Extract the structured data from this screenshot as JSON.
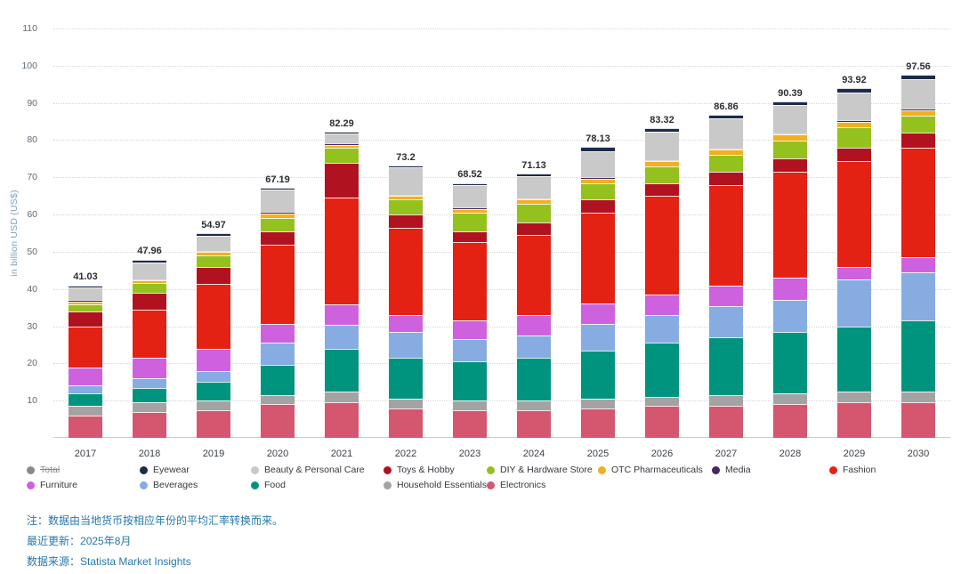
{
  "chart_data": {
    "type": "bar",
    "stacked": true,
    "title": "",
    "xlabel": "",
    "ylabel": "in billion USD (US$)",
    "ylim": [
      0,
      110
    ],
    "ytick_step": 10,
    "grid": true,
    "legend_position": "bottom",
    "categories": [
      "2017",
      "2018",
      "2019",
      "2020",
      "2021",
      "2022",
      "2023",
      "2024",
      "2025",
      "2026",
      "2027",
      "2028",
      "2029",
      "2030"
    ],
    "totals": [
      41.03,
      47.96,
      54.97,
      67.19,
      82.29,
      73.2,
      68.52,
      71.13,
      78.13,
      83.32,
      86.86,
      90.39,
      93.92,
      97.56
    ],
    "total_labels": [
      "41.03",
      "47.96",
      "54.97",
      "67.19",
      "82.29",
      "73.2",
      "68.52",
      "71.13",
      "78.13",
      "83.32",
      "86.86",
      "90.39",
      "93.92",
      "97.56"
    ],
    "series": [
      {
        "name": "Electronics",
        "color": "#d4566f",
        "values": [
          6.0,
          7.0,
          7.5,
          9.0,
          9.5,
          8.0,
          7.5,
          7.5,
          8.0,
          8.5,
          8.5,
          9.0,
          9.5,
          9.5
        ]
      },
      {
        "name": "Household Essentials",
        "color": "#a3a3a3",
        "values": [
          2.5,
          2.5,
          2.5,
          2.5,
          3.0,
          2.5,
          2.5,
          2.5,
          2.5,
          2.5,
          3.0,
          3.0,
          3.0,
          3.0
        ]
      },
      {
        "name": "Food",
        "color": "#00947e",
        "values": [
          3.5,
          4.0,
          5.0,
          8.0,
          11.5,
          11.0,
          10.5,
          11.5,
          13.0,
          14.5,
          15.5,
          16.5,
          17.5,
          19.0
        ]
      },
      {
        "name": "Beverages",
        "color": "#86ace2",
        "values": [
          2.0,
          2.5,
          3.0,
          6.0,
          6.5,
          7.0,
          6.0,
          6.0,
          7.0,
          7.5,
          8.5,
          8.5,
          12.5,
          13.0
        ]
      },
      {
        "name": "Furniture",
        "color": "#ce62de",
        "values": [
          5.0,
          5.5,
          6.0,
          5.0,
          5.5,
          4.5,
          5.0,
          5.5,
          5.5,
          5.5,
          5.5,
          6.0,
          3.5,
          4.0
        ]
      },
      {
        "name": "Fashion",
        "color": "#e32213",
        "values": [
          11.0,
          13.0,
          17.5,
          21.5,
          28.5,
          23.5,
          21.0,
          21.5,
          24.5,
          26.5,
          27.0,
          28.5,
          28.5,
          29.5
        ]
      },
      {
        "name": "Toys & Hobby",
        "color": "#b0131f",
        "values": [
          4.0,
          4.5,
          4.5,
          3.5,
          9.5,
          3.5,
          3.0,
          3.5,
          3.5,
          3.5,
          3.5,
          3.5,
          3.5,
          4.0
        ]
      },
      {
        "name": "DIY & Hardware Store",
        "color": "#95c11f",
        "values": [
          2.0,
          2.5,
          3.0,
          3.5,
          4.0,
          4.0,
          5.0,
          5.0,
          4.5,
          4.5,
          4.5,
          5.0,
          5.5,
          4.5
        ]
      },
      {
        "name": "OTC Pharmaceuticals",
        "color": "#f2b01e",
        "values": [
          0.7,
          0.8,
          0.9,
          1.2,
          0.8,
          1.0,
          1.0,
          1.0,
          1.2,
          1.3,
          1.4,
          1.5,
          1.5,
          1.6
        ]
      },
      {
        "name": "Media",
        "color": "#46265c",
        "values": [
          0.3,
          0.35,
          0.4,
          0.5,
          0.4,
          0.4,
          0.4,
          0.4,
          0.4,
          0.4,
          0.4,
          0.4,
          0.4,
          0.4
        ]
      },
      {
        "name": "Beauty & Personal Care",
        "color": "#c9c9c9",
        "values": [
          3.5,
          4.5,
          4.0,
          6.0,
          2.5,
          7.2,
          6.0,
          6.0,
          7.0,
          7.5,
          8.0,
          7.5,
          7.5,
          8.0
        ]
      },
      {
        "name": "Eyewear",
        "color": "#1c2b4a",
        "values": [
          0.53,
          0.81,
          0.67,
          0.49,
          0.59,
          0.6,
          0.62,
          0.73,
          1.03,
          1.12,
          1.06,
          0.99,
          1.02,
          1.06
        ]
      }
    ],
    "legend": [
      {
        "label": "Total",
        "color": "#8a8a8a",
        "strikethrough": true
      },
      {
        "label": "Eyewear",
        "color": "#1c2b4a",
        "strikethrough": false
      },
      {
        "label": "Beauty & Personal Care",
        "color": "#c9c9c9",
        "strikethrough": false
      },
      {
        "label": "Toys & Hobby",
        "color": "#b0131f",
        "strikethrough": false
      },
      {
        "label": "DIY & Hardware Store",
        "color": "#95c11f",
        "strikethrough": false
      },
      {
        "label": "OTC Pharmaceuticals",
        "color": "#f2b01e",
        "strikethrough": false
      },
      {
        "label": "Media",
        "color": "#46265c",
        "strikethrough": false
      },
      {
        "label": "Fashion",
        "color": "#e32213",
        "strikethrough": false
      },
      {
        "label": "Furniture",
        "color": "#ce62de",
        "strikethrough": false
      },
      {
        "label": "Beverages",
        "color": "#86ace2",
        "strikethrough": false
      },
      {
        "label": "Food",
        "color": "#00947e",
        "strikethrough": false
      },
      {
        "label": "Household Essentials",
        "color": "#a3a3a3",
        "strikethrough": false
      },
      {
        "label": "Electronics",
        "color": "#d4566f",
        "strikethrough": false
      }
    ]
  },
  "notes": {
    "conversion": "注：数据由当地货币按相应年份的平均汇率转换而来。",
    "updated_label": "最近更新：",
    "updated_value": "2025年8月",
    "source_label": "数据来源：",
    "source_value": "Statista Market Insights"
  }
}
